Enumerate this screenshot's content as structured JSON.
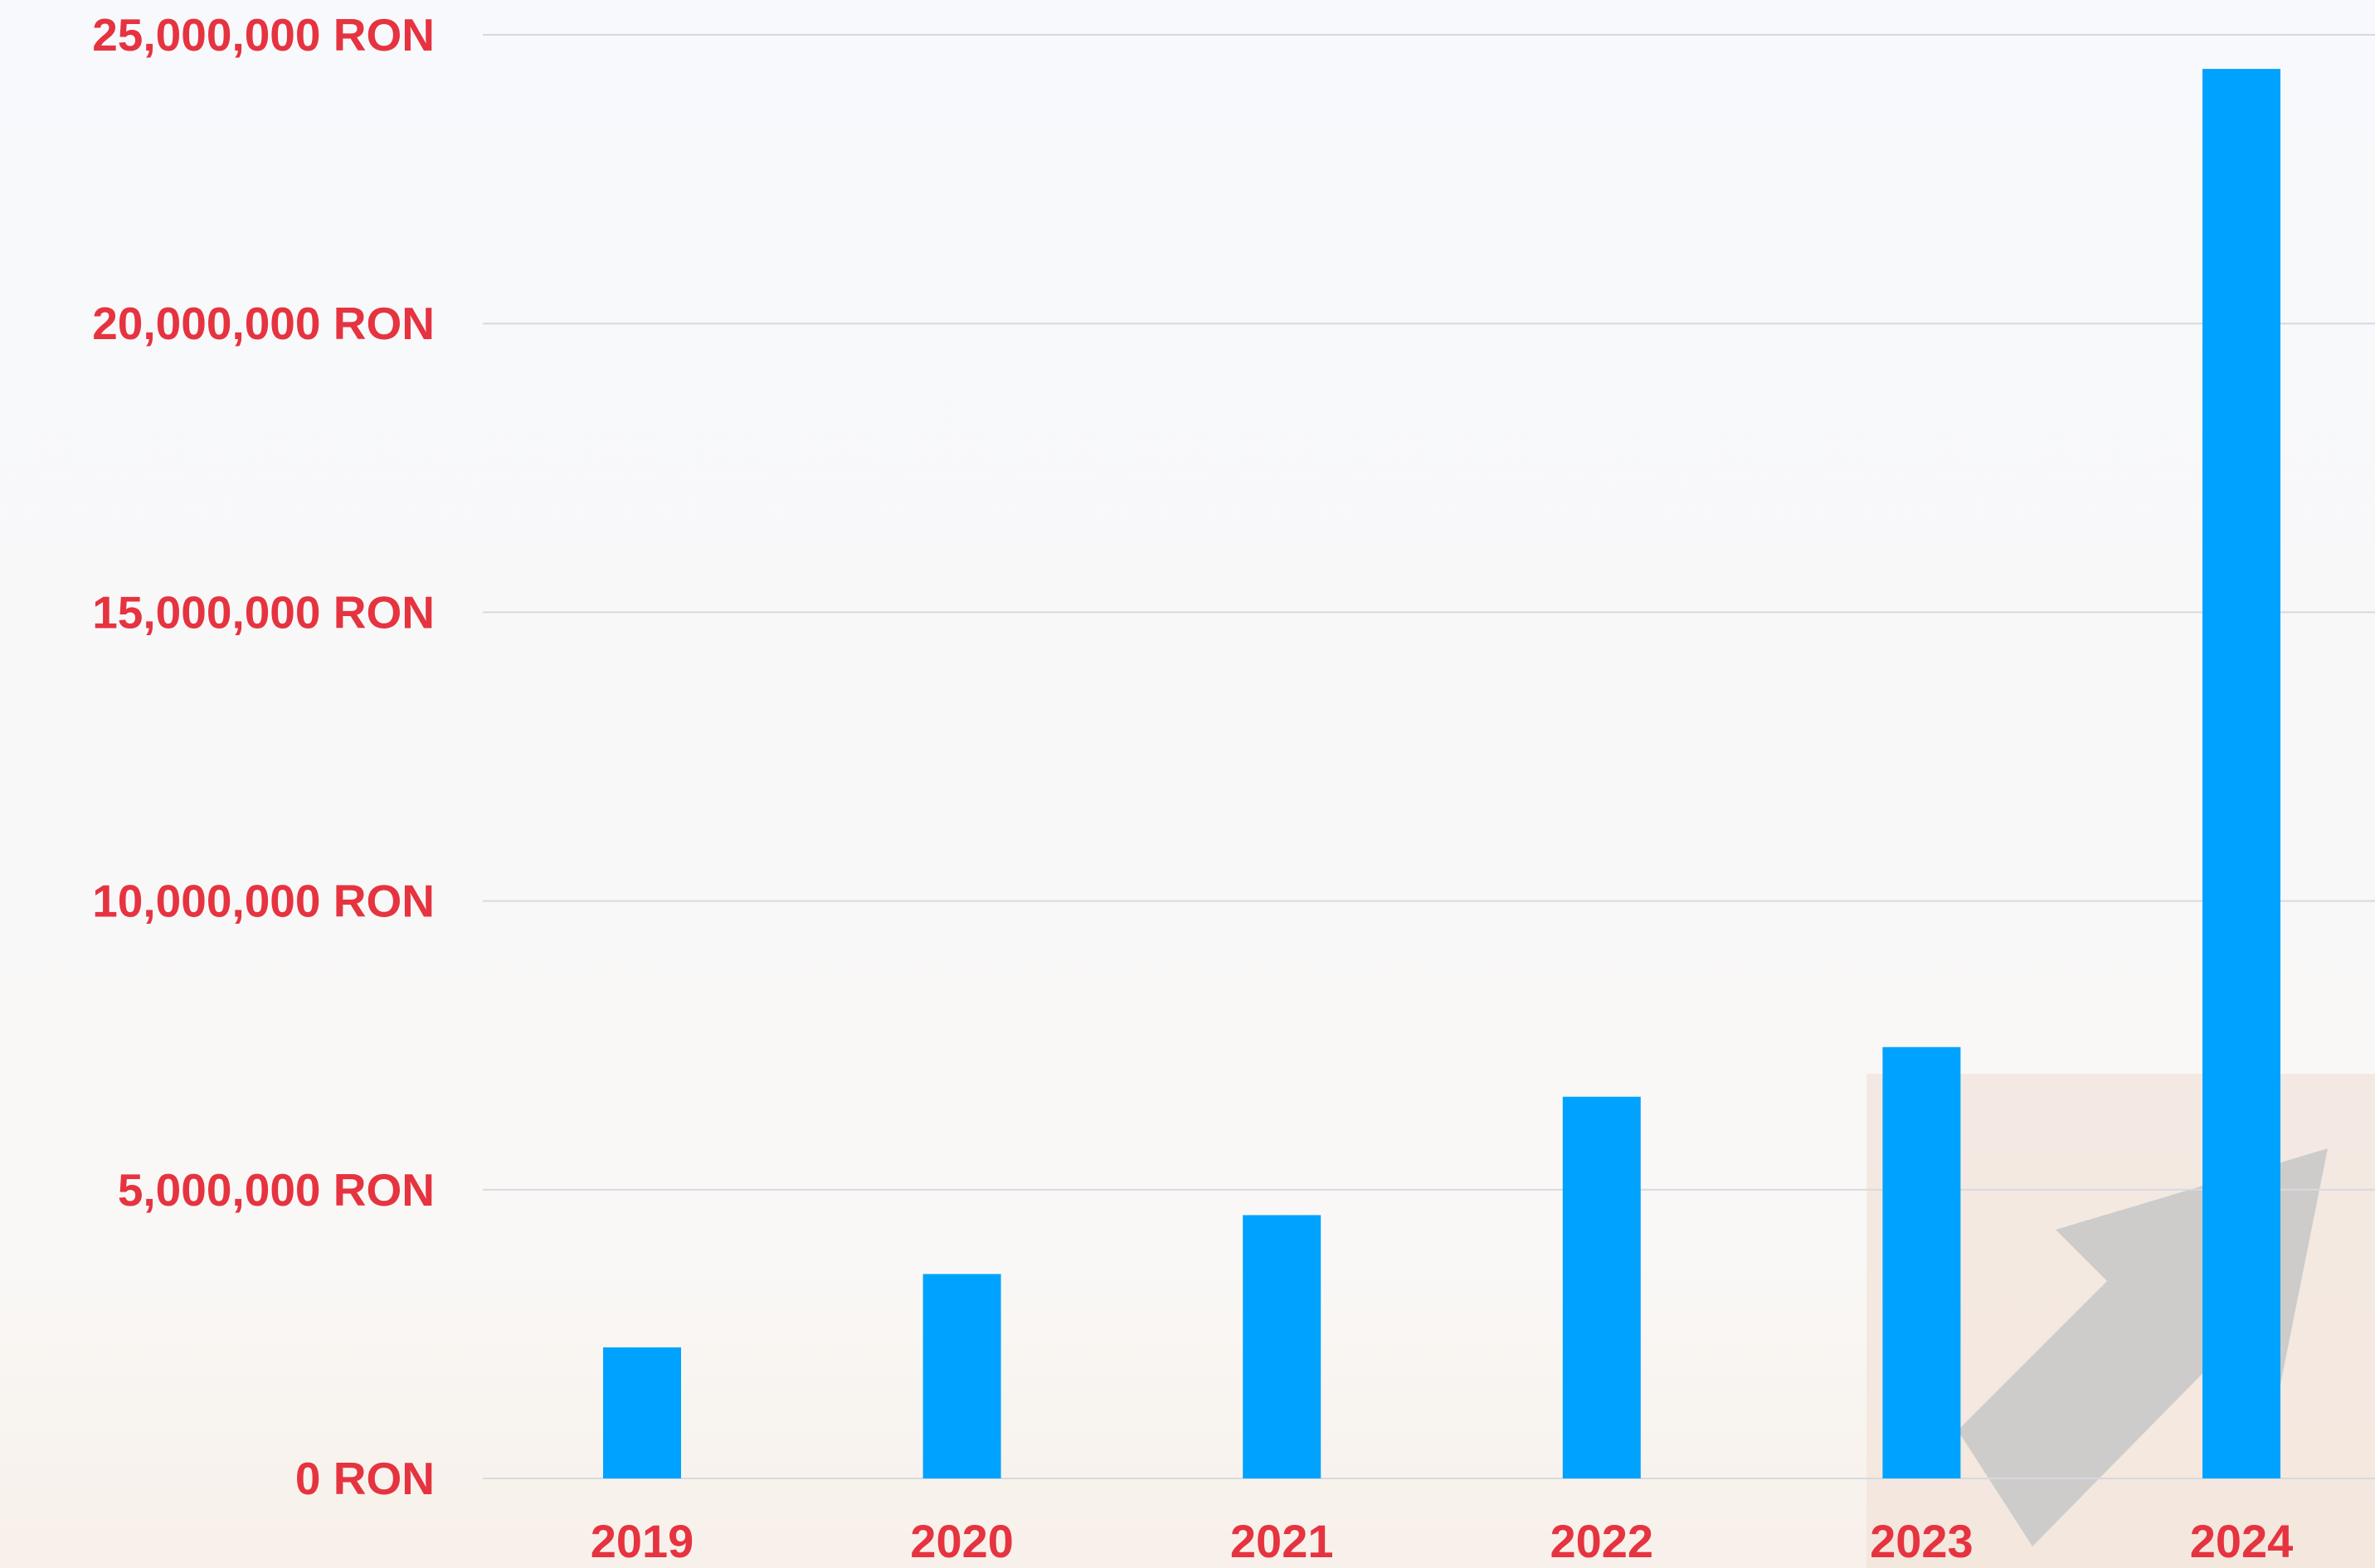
{
  "chart_data": {
    "type": "bar",
    "categories": [
      "2019",
      "2020",
      "2021",
      "2022",
      "2023",
      "2024"
    ],
    "values": [
      2270000,
      3540000,
      4560000,
      6610000,
      7470000,
      24410000
    ],
    "ylim": [
      0,
      25000000
    ],
    "y_ticks": [
      {
        "value": 0,
        "label": "0 RON"
      },
      {
        "value": 5000000,
        "label": "5,000,000 RON"
      },
      {
        "value": 10000000,
        "label": "10,000,000 RON"
      },
      {
        "value": 15000000,
        "label": "15,000,000 RON"
      },
      {
        "value": 20000000,
        "label": "20,000,000 RON"
      },
      {
        "value": 25000000,
        "label": "25,000,000 RON"
      }
    ],
    "grid": true,
    "legend": "none",
    "colors": {
      "bar": "#00a2ff",
      "tick_label": "#e63340",
      "gridline": "#d6d9df",
      "background": "#f8f9fc",
      "decor_box": "#f2e2d8",
      "decor_arrow": "#c9c9c9"
    }
  }
}
